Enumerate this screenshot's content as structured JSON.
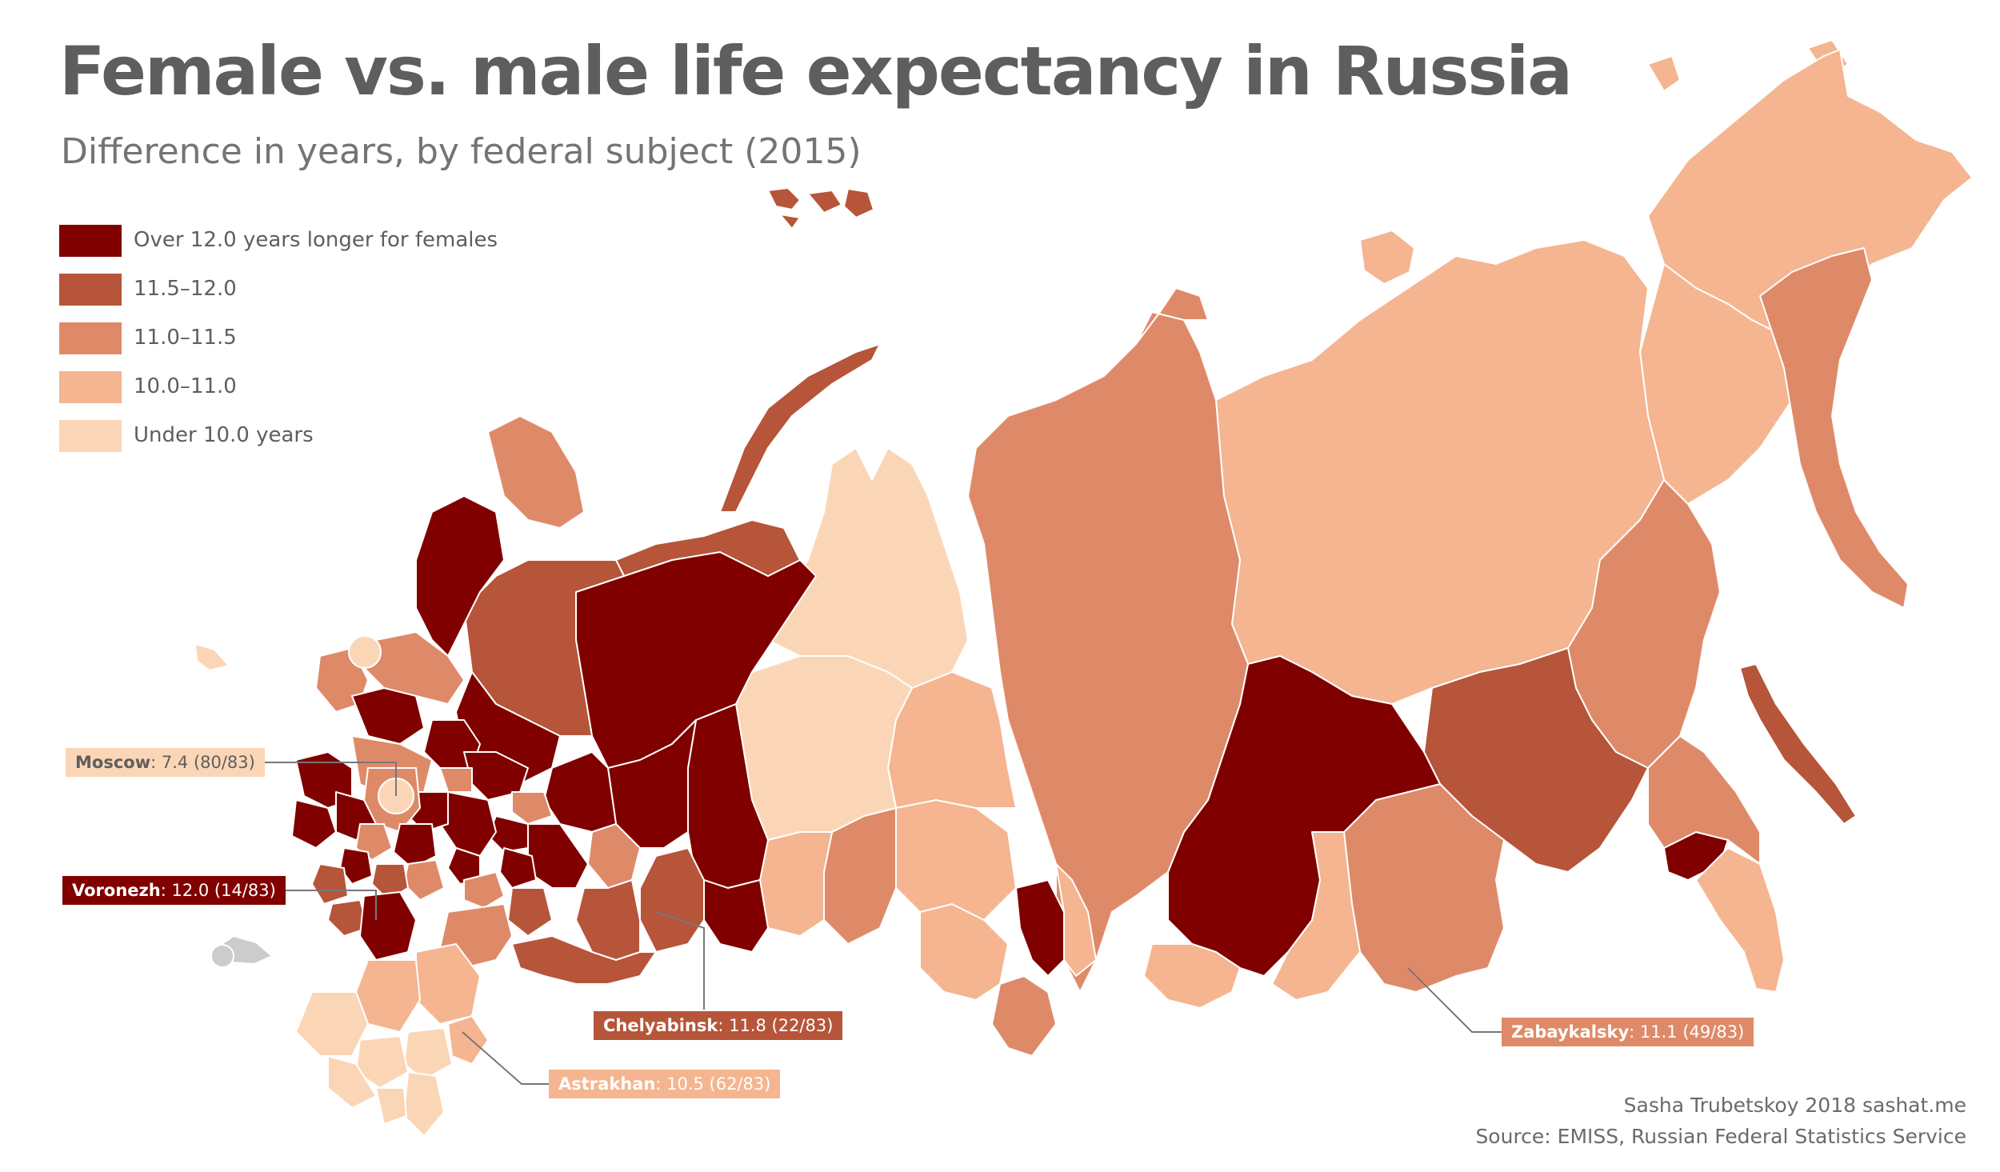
{
  "title": "Female vs. male life expectancy in Russia",
  "subtitle": "Difference in years, by federal subject (2015)",
  "colors": {
    "over12": "#800000",
    "c1150": "#b65539",
    "c1100": "#de8a69",
    "c1000": "#f4b590",
    "under10": "#fbd6b6",
    "neutral": "#cccccc"
  },
  "legend": [
    {
      "label": "Over 12.0 years longer for females",
      "color": "#800000"
    },
    {
      "label": "11.5–12.0",
      "color": "#b65539"
    },
    {
      "label": "11.0–11.5",
      "color": "#de8a69"
    },
    {
      "label": "10.0–11.0",
      "color": "#f4b590"
    },
    {
      "label": "Under 10.0 years",
      "color": "#fbd6b6"
    }
  ],
  "callouts": {
    "moscow": {
      "name": "Moscow",
      "value": "7.4 (80/83)",
      "color": "#fbd6b6",
      "text_color": "#5e5e5e"
    },
    "voronezh": {
      "name": "Voronezh",
      "value": "12.0 (14/83)",
      "color": "#800000",
      "text_color": "#ffffff"
    },
    "chelyabinsk": {
      "name": "Chelyabinsk",
      "value": "11.8 (22/83)",
      "color": "#b65539",
      "text_color": "#ffffff"
    },
    "astrakhan": {
      "name": "Astrakhan",
      "value": "10.5 (62/83)",
      "color": "#f4b590",
      "text_color": "#ffffff"
    },
    "zabaykalsky": {
      "name": "Zabaykalsky",
      "value": "11.1 (49/83)",
      "color": "#de8a69",
      "text_color": "#ffffff"
    }
  },
  "credit": {
    "author": "Sasha Trubetskoy 2018 sashat.me",
    "source": "Source: EMISS, Russian Federal Statistics Service"
  }
}
